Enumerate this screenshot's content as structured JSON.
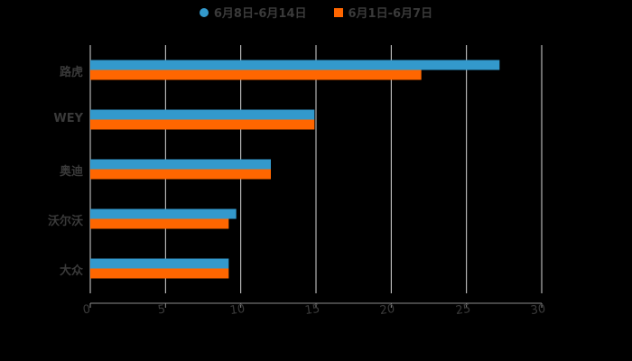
{
  "chart_data": {
    "type": "bar",
    "orientation": "horizontal",
    "title": "",
    "categories": [
      "路虎",
      "WEY",
      "奥迪",
      "沃尔沃",
      "大众"
    ],
    "series": [
      {
        "name": "6月8日-6月14日",
        "color": "#3399cc",
        "values": [
          27.2,
          14.9,
          12.0,
          9.7,
          9.2
        ]
      },
      {
        "name": "6月1日-6月7日",
        "color": "#ff6600",
        "values": [
          22.0,
          14.9,
          12.0,
          9.2,
          9.2
        ]
      }
    ],
    "xlabel": "",
    "ylabel": "",
    "xlim": [
      0,
      30
    ],
    "xticks": [
      "0",
      "5",
      "10",
      "15",
      "20",
      "25",
      "30"
    ],
    "grid": true,
    "legend_position": "top"
  },
  "legend": {
    "series0": "6月8日-6月14日",
    "series1": "6月1日-6月7日"
  },
  "colors": {
    "background": "#000000",
    "text": "#3a3a3a",
    "grid": "#d9d9d9"
  }
}
